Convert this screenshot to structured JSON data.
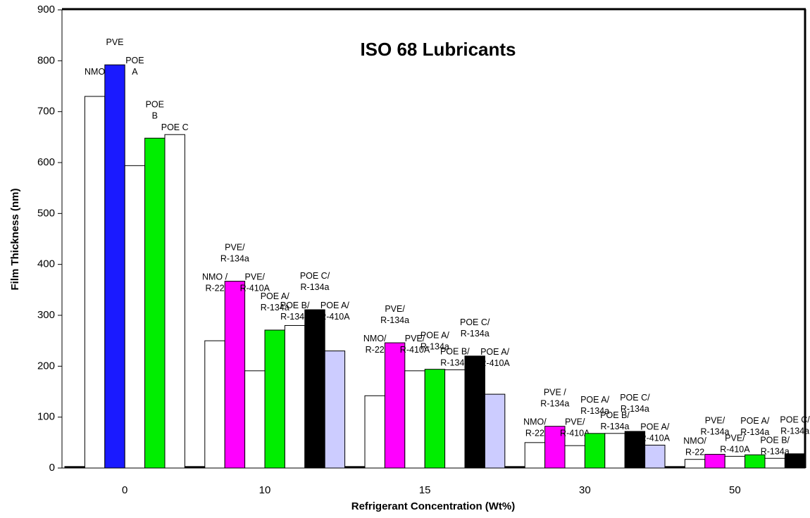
{
  "chart_data": {
    "type": "grouped-bar",
    "title": "ISO 68 Lubricants",
    "y_label": "Film Thickness (nm)",
    "x_label": "Refrigerant Concentration (Wt%)",
    "ylim": [
      0,
      900
    ],
    "yticks": [
      0,
      100,
      200,
      300,
      400,
      500,
      600,
      700,
      800,
      900
    ],
    "groups": [
      {
        "category": "0",
        "bars": [
          {
            "label": null,
            "value": 3,
            "color": "#000000"
          },
          {
            "label": [
              "NMO"
            ],
            "value": 730,
            "color": "#ffffff"
          },
          {
            "label": [
              "PVE"
            ],
            "value": 792,
            "color": "#1a1aff"
          },
          {
            "label": [
              "POE",
              "A"
            ],
            "value": 594,
            "color": "#ffffff"
          },
          {
            "label": [
              "POE",
              "B"
            ],
            "value": 648,
            "color": "#00ee00"
          },
          {
            "label": [
              "POE  C"
            ],
            "value": 655,
            "color": "#ffffff"
          }
        ]
      },
      {
        "category": "10",
        "bars": [
          {
            "label": null,
            "value": 3,
            "color": "#000000"
          },
          {
            "label": [
              "NMO /",
              "R-22"
            ],
            "value": 250,
            "color": "#ffffff"
          },
          {
            "label": [
              "PVE/",
              "R-134a"
            ],
            "value": 367,
            "color": "#ff00ff"
          },
          {
            "label": [
              "PVE/",
              "R-410A"
            ],
            "value": 191,
            "color": "#ffffff"
          },
          {
            "label": [
              "POE A/",
              "R-134a"
            ],
            "value": 271,
            "color": "#00ee00"
          },
          {
            "label": [
              "POE B/",
              "R-134a"
            ],
            "value": 280,
            "color": "#ffffff"
          },
          {
            "label": [
              "POE C/",
              "R-134a"
            ],
            "value": 311,
            "color": "#000000"
          },
          {
            "label": [
              "POE A/",
              "R-410A"
            ],
            "value": 230,
            "color": "#ccccff"
          }
        ]
      },
      {
        "category": "15",
        "bars": [
          {
            "label": null,
            "value": 3,
            "color": "#000000"
          },
          {
            "label": [
              "NMO/",
              "R-22"
            ],
            "value": 142,
            "color": "#ffffff"
          },
          {
            "label": [
              "PVE/",
              "R-134a"
            ],
            "value": 246,
            "color": "#ff00ff"
          },
          {
            "label": [
              "PVE/",
              "R-410A"
            ],
            "value": 191,
            "color": "#ffffff"
          },
          {
            "label": [
              "POE A/",
              "R-134a"
            ],
            "value": 194,
            "color": "#00ee00"
          },
          {
            "label": [
              "POE B/",
              "R-134a"
            ],
            "value": 193,
            "color": "#ffffff"
          },
          {
            "label": [
              "POE C/",
              "R-134a"
            ],
            "value": 220,
            "color": "#000000"
          },
          {
            "label": [
              "POE A/",
              "R-410A"
            ],
            "value": 145,
            "color": "#ccccff"
          }
        ]
      },
      {
        "category": "30",
        "bars": [
          {
            "label": null,
            "value": 3,
            "color": "#000000"
          },
          {
            "label": [
              "NMO/",
              "R-22"
            ],
            "value": 50,
            "color": "#ffffff"
          },
          {
            "label": [
              "PVE /",
              "R-134a"
            ],
            "value": 82,
            "color": "#ff00ff"
          },
          {
            "label": [
              "PVE/",
              "R-410A"
            ],
            "value": 44,
            "color": "#ffffff"
          },
          {
            "label": [
              "POE A/",
              "R-134a"
            ],
            "value": 68,
            "color": "#00ee00"
          },
          {
            "label": [
              "POE B/",
              "R-134a"
            ],
            "value": 68,
            "color": "#ffffff"
          },
          {
            "label": [
              "POE C/",
              "R-134a"
            ],
            "value": 72,
            "color": "#000000"
          },
          {
            "label": [
              "POE A/",
              "R-410A"
            ],
            "value": 45,
            "color": "#ccccff"
          }
        ]
      },
      {
        "category": "50",
        "bars": [
          {
            "label": null,
            "value": 3,
            "color": "#000000"
          },
          {
            "label": [
              "NMO/",
              "R-22"
            ],
            "value": 17,
            "color": "#ffffff"
          },
          {
            "label": [
              "PVE/",
              "R-134a"
            ],
            "value": 27,
            "color": "#ff00ff"
          },
          {
            "label": [
              "PVE/",
              "R-410A"
            ],
            "value": 23,
            "color": "#ffffff"
          },
          {
            "label": [
              "POE A/",
              "R-134a"
            ],
            "value": 26,
            "color": "#00ee00"
          },
          {
            "label": [
              "POE B/",
              "R-134a"
            ],
            "value": 19,
            "color": "#ffffff"
          },
          {
            "label": [
              "POE C/",
              "R-134a"
            ],
            "value": 28,
            "color": "#000000"
          }
        ]
      }
    ]
  }
}
